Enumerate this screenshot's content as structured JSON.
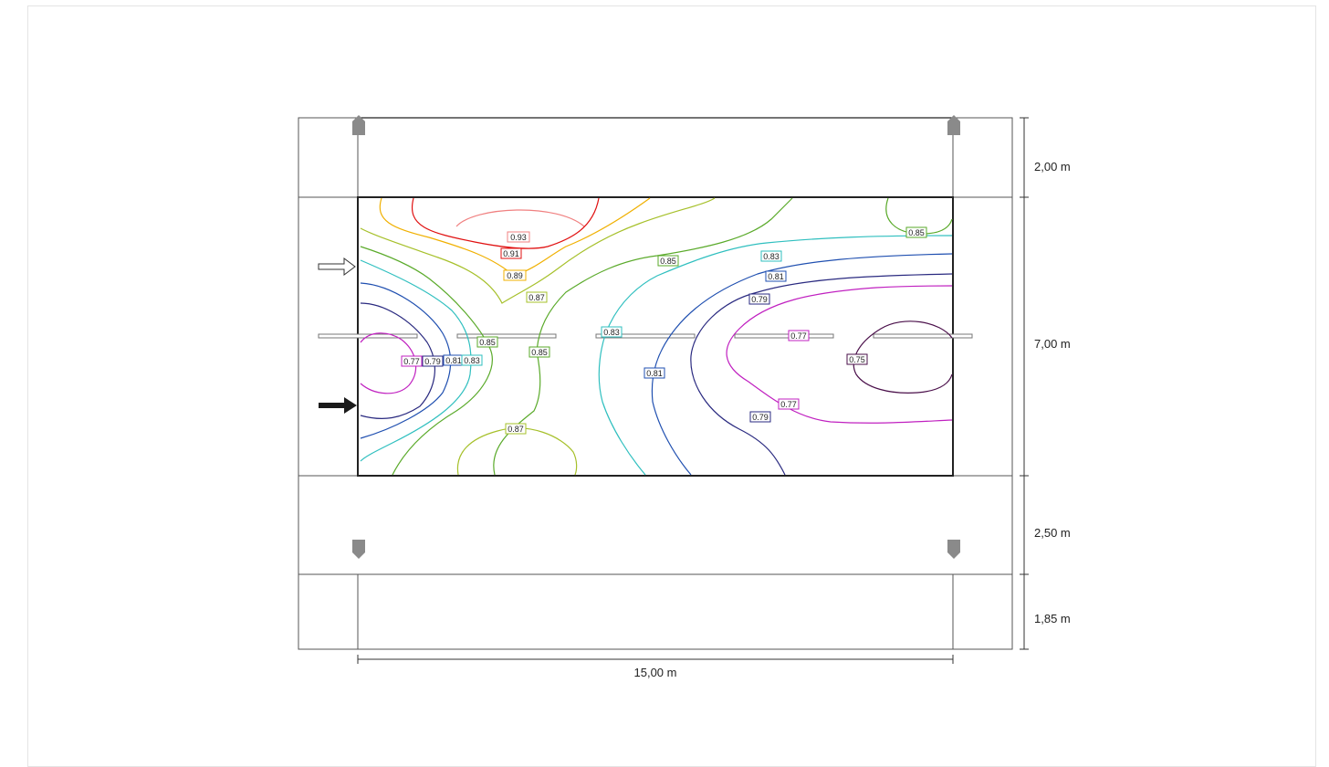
{
  "dimensions": {
    "sidewalk_top": "2,00 m",
    "roadway": "7,00 m",
    "sidewalk_bottom": "2,50 m",
    "strip": "1,85 m",
    "spacing": "15,00 m"
  },
  "contour_labels": [
    "0.93",
    "0.91",
    "0.89",
    "0.87",
    "0.85",
    "0.85",
    "0.83",
    "0.81",
    "0.79",
    "0.85",
    "0.85",
    "0.83",
    "0.81",
    "0.79",
    "0.77",
    "0.77",
    "0.75",
    "0.77",
    "0.79",
    "0.81",
    "0.83",
    "0.85",
    "0.87"
  ],
  "contour_colors": {
    "0.75": "#4a0f4a",
    "0.77": "#c020c0",
    "0.79": "#2a2a80",
    "0.81": "#1f4fb0",
    "0.83": "#2fbfbf",
    "0.85": "#5aaa2a",
    "0.87": "#a6c02a",
    "0.89": "#f0b000",
    "0.91": "#e01010",
    "0.93": "#f08080"
  },
  "icons": [
    "luminaire-icon",
    "traffic-direction-outline-arrow-icon",
    "traffic-direction-solid-arrow-icon"
  ]
}
